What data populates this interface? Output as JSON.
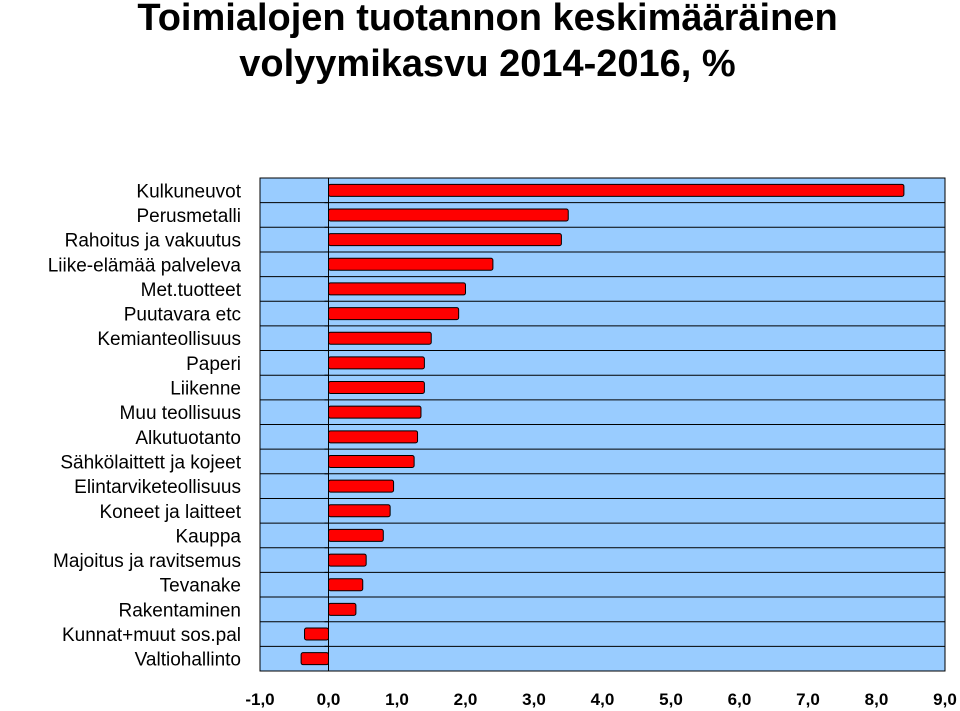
{
  "title_line1": "Toimialojen tuotannon keskimääräinen",
  "title_line2": "volyymikasvu 2014-2016, %",
  "colors": {
    "plot_background": "#99ccff",
    "bar_fill": "#ff0000",
    "bar_stroke": "#000000",
    "grid": "#000000"
  },
  "chart_data": {
    "type": "bar",
    "orientation": "horizontal",
    "title": "Toimialojen tuotannon keskimääräinen volyymikasvu 2014-2016, %",
    "xlabel": "",
    "ylabel": "",
    "xlim": [
      -1.0,
      9.0
    ],
    "grid": true,
    "legend": "none",
    "tick_labels": [
      "-1,0",
      "0,0",
      "1,0",
      "2,0",
      "3,0",
      "4,0",
      "5,0",
      "6,0",
      "7,0",
      "8,0",
      "9,0"
    ],
    "categories": [
      "Kulkuneuvot",
      "Perusmetalli",
      "Rahoitus ja vakuutus",
      "Liike-elämää palveleva",
      "Met.tuotteet",
      "Puutavara etc",
      "Kemianteollisuus",
      "Paperi",
      "Liikenne",
      "Muu teollisuus",
      "Alkutuotanto",
      "Sähkölaittett ja kojeet",
      "Elintarviketeollisuus",
      "Koneet ja laitteet",
      "Kauppa",
      "Majoitus ja ravitsemus",
      "Tevanake",
      "Rakentaminen",
      "Kunnat+muut sos.pal",
      "Valtiohallinto"
    ],
    "values": [
      8.4,
      3.5,
      3.4,
      2.4,
      2.0,
      1.9,
      1.5,
      1.4,
      1.4,
      1.35,
      1.3,
      1.25,
      0.95,
      0.9,
      0.8,
      0.55,
      0.5,
      0.4,
      -0.35,
      -0.4
    ]
  }
}
